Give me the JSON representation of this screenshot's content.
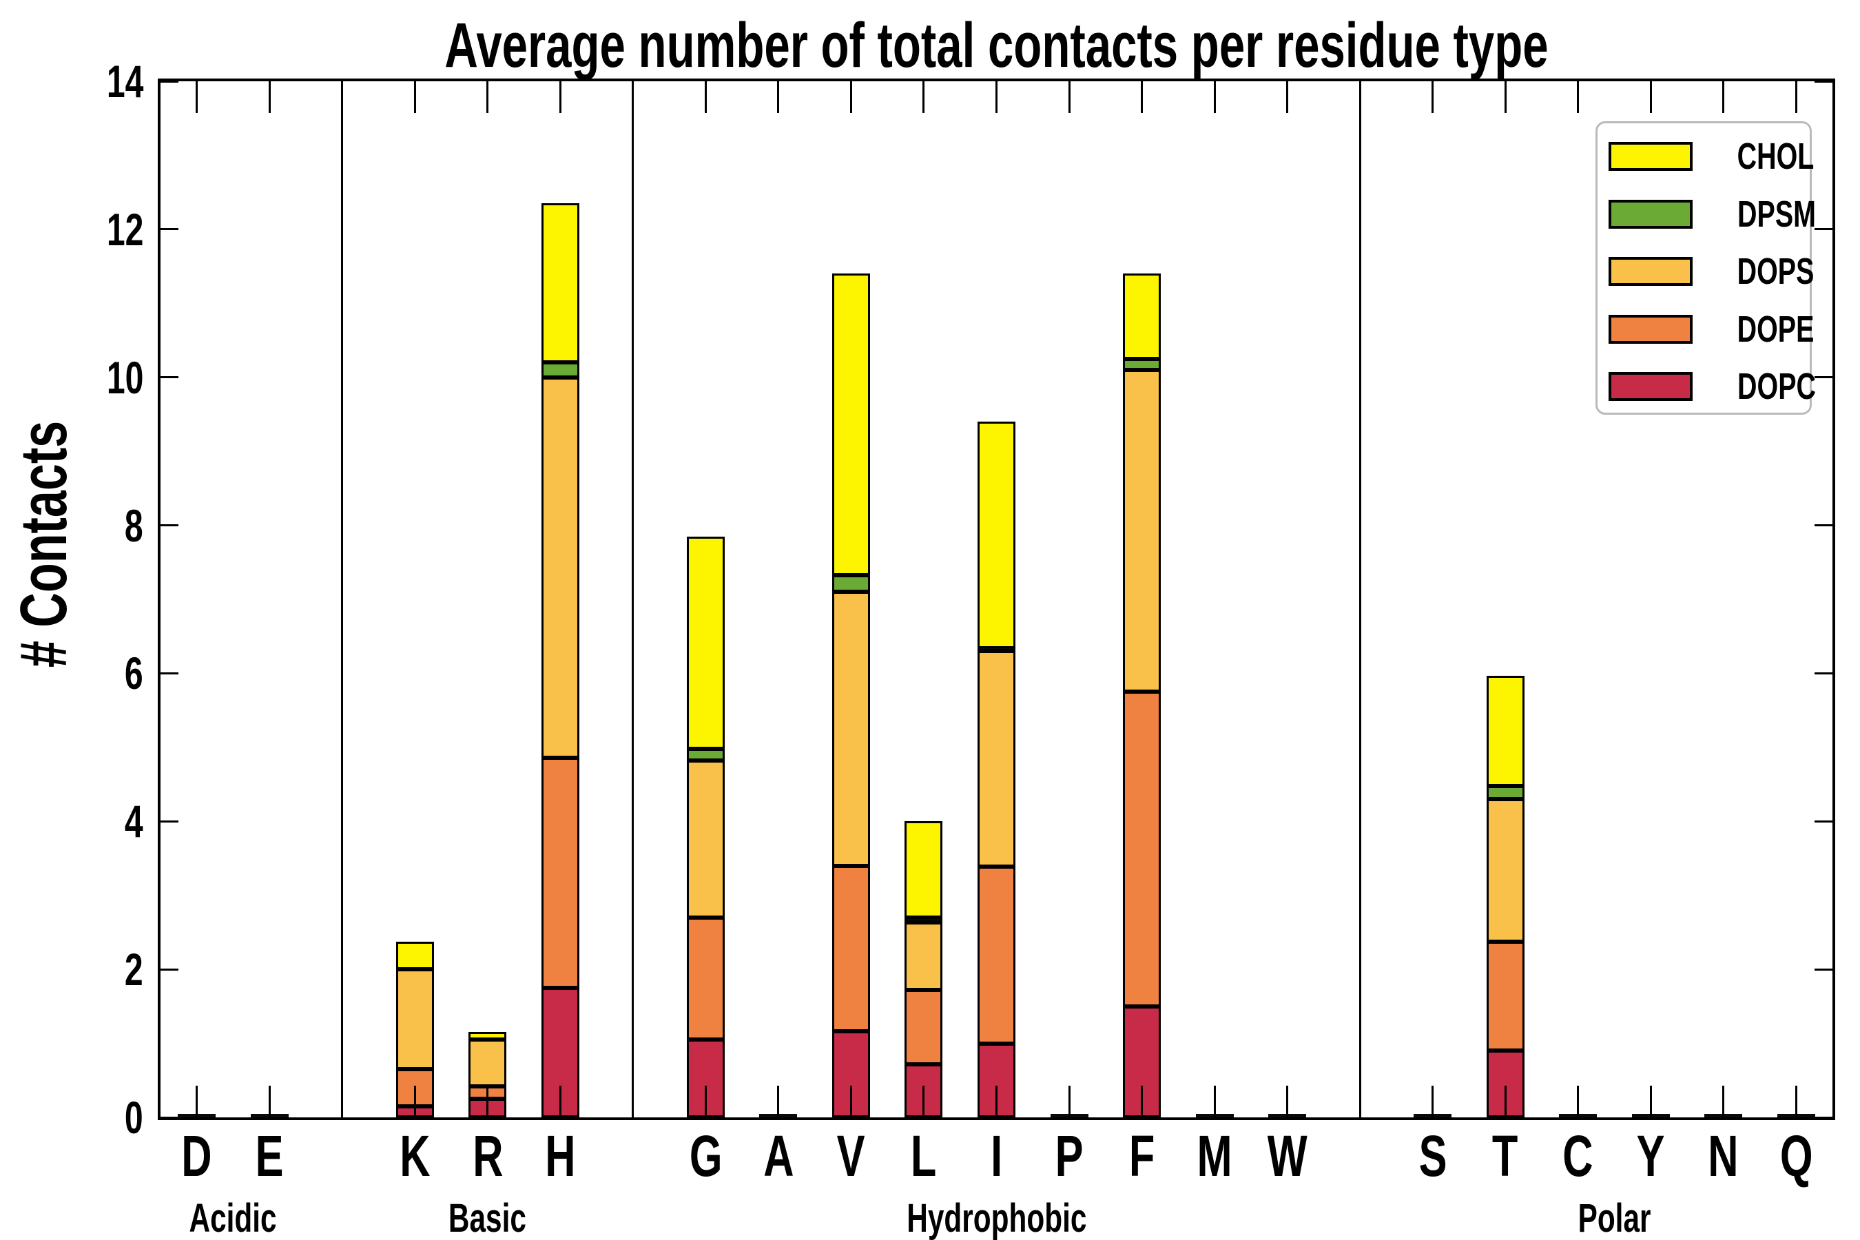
{
  "title": "Average number of total contacts per residue type",
  "ylabel": "# Contacts",
  "chart_data": {
    "type": "bar",
    "stacked": true,
    "title": "Average number of total contacts per residue type",
    "xlabel": "",
    "ylabel": "# Contacts",
    "ylim": [
      0,
      14
    ],
    "yticks": [
      0,
      2,
      4,
      6,
      8,
      10,
      12,
      14
    ],
    "grid": false,
    "legend_position": "upper right",
    "categories": [
      "D",
      "E",
      "K",
      "R",
      "H",
      "G",
      "A",
      "V",
      "L",
      "I",
      "P",
      "F",
      "M",
      "W",
      "S",
      "T",
      "C",
      "Y",
      "N",
      "Q"
    ],
    "category_slots": [
      0.5,
      1.5,
      3.5,
      4.5,
      5.5,
      7.5,
      8.5,
      9.5,
      10.5,
      11.5,
      12.5,
      13.5,
      14.5,
      15.5,
      17.5,
      18.5,
      19.5,
      20.5,
      21.5,
      22.5
    ],
    "total_slots": 23,
    "groups": [
      {
        "label": "Acidic",
        "residues": [
          "D",
          "E"
        ],
        "center_slot": 1.0
      },
      {
        "label": "Basic",
        "residues": [
          "K",
          "R",
          "H"
        ],
        "center_slot": 4.5
      },
      {
        "label": "Hydrophobic",
        "residues": [
          "G",
          "A",
          "V",
          "L",
          "I",
          "P",
          "F",
          "M",
          "W"
        ],
        "center_slot": 11.5
      },
      {
        "label": "Polar",
        "residues": [
          "S",
          "T",
          "C",
          "Y",
          "N",
          "Q"
        ],
        "center_slot": 20.0
      }
    ],
    "separator_slots": [
      2.5,
      6.5,
      16.5
    ],
    "series": [
      {
        "name": "DOPC",
        "color": "#C72B47",
        "values": [
          0.02,
          0.02,
          0.15,
          0.25,
          1.75,
          1.05,
          0.02,
          1.16,
          0.72,
          1.0,
          0.02,
          1.5,
          0.02,
          0.02,
          0.02,
          0.9,
          0.02,
          0.02,
          0.02,
          0.02
        ]
      },
      {
        "name": "DOPE",
        "color": "#EF8240",
        "values": [
          0,
          0,
          0.5,
          0.17,
          3.11,
          1.65,
          0,
          2.24,
          1.0,
          2.39,
          0,
          4.25,
          0,
          0,
          0,
          1.47,
          0,
          0,
          0,
          0
        ]
      },
      {
        "name": "DOPS",
        "color": "#F9C04A",
        "values": [
          0,
          0,
          1.35,
          0.63,
          5.14,
          2.12,
          0,
          3.7,
          0.91,
          2.91,
          0,
          4.35,
          0,
          0,
          0,
          1.93,
          0,
          0,
          0,
          0
        ]
      },
      {
        "name": "DPSM",
        "color": "#6BAA34",
        "values": [
          0,
          0,
          0,
          0,
          0.2,
          0.16,
          0,
          0.23,
          0.07,
          0.04,
          0,
          0.15,
          0,
          0,
          0,
          0.18,
          0,
          0,
          0,
          0
        ]
      },
      {
        "name": "CHOL",
        "color": "#FDF500",
        "values": [
          0,
          0,
          0.37,
          0.1,
          2.15,
          2.87,
          0,
          4.07,
          1.3,
          3.06,
          0,
          1.15,
          0,
          0,
          0,
          1.49,
          0,
          0,
          0,
          0
        ]
      }
    ],
    "totals": [
      0.02,
      0.02,
      2.37,
      1.15,
      12.35,
      7.85,
      0.02,
      11.4,
      4.0,
      9.4,
      0.02,
      11.4,
      0.02,
      0.02,
      0.02,
      5.97,
      0.02,
      0.02,
      0.02,
      0.02
    ],
    "legend": [
      {
        "label": "CHOL",
        "color": "#FDF500"
      },
      {
        "label": "DPSM",
        "color": "#6BAA34"
      },
      {
        "label": "DOPS",
        "color": "#F9C04A"
      },
      {
        "label": "DOPE",
        "color": "#EF8240"
      },
      {
        "label": "DOPC",
        "color": "#C72B47"
      }
    ]
  }
}
